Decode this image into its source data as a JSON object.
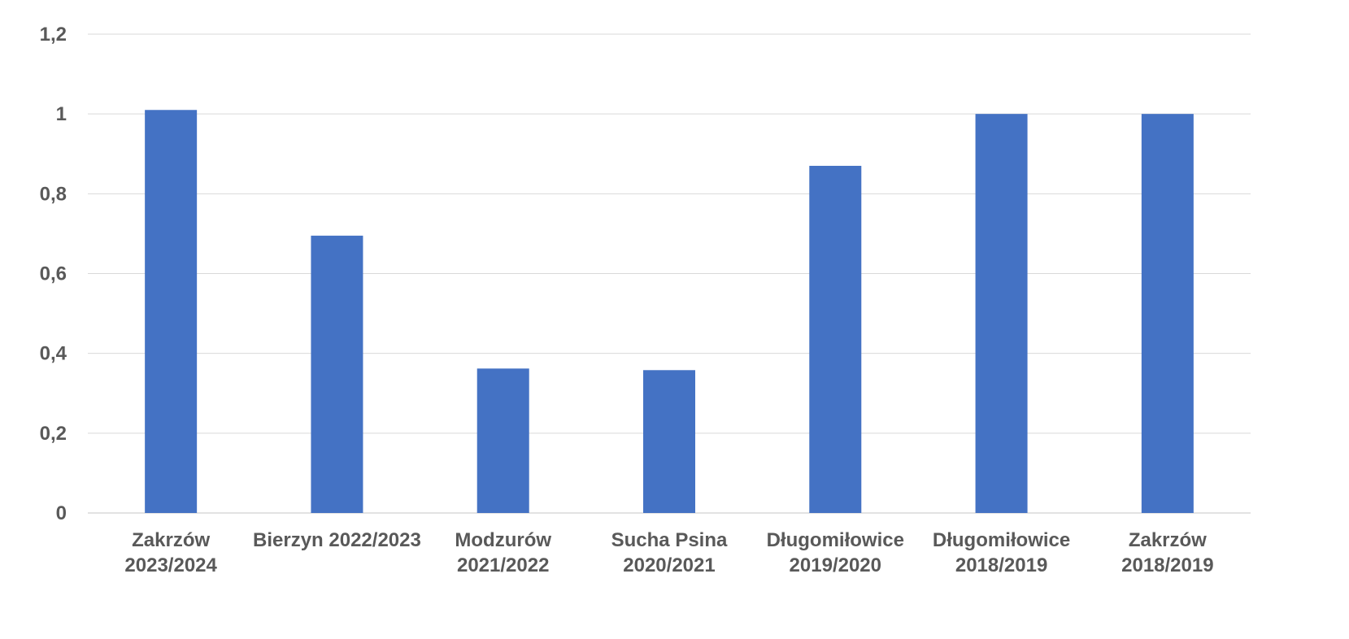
{
  "chart_data": {
    "type": "bar",
    "title": "",
    "xlabel": "",
    "ylabel": "",
    "categories": [
      [
        "Zakrzów",
        "2023/2024"
      ],
      [
        "Bierzyn 2022/2023"
      ],
      [
        "Modzurów",
        "2021/2022"
      ],
      [
        "Sucha Psina",
        "2020/2021"
      ],
      [
        "Długomiłowice",
        "2019/2020"
      ],
      [
        "Długomiłowice",
        "2018/2019"
      ],
      [
        "Zakrzów",
        "2018/2019"
      ]
    ],
    "values": [
      1.01,
      0.695,
      0.362,
      0.358,
      0.87,
      1.0,
      1.0
    ],
    "ylim": [
      0,
      1.2
    ],
    "yticks": [
      0,
      0.2,
      0.4,
      0.6,
      0.8,
      1.0,
      1.2
    ],
    "ytick_labels": [
      "0",
      "0,2",
      "0,4",
      "0,6",
      "0,8",
      "1",
      "1,2"
    ],
    "grid": true,
    "legend": "none",
    "colors": {
      "bar": "#4472c4",
      "grid": "#d9d9d9",
      "text": "#595959"
    }
  }
}
